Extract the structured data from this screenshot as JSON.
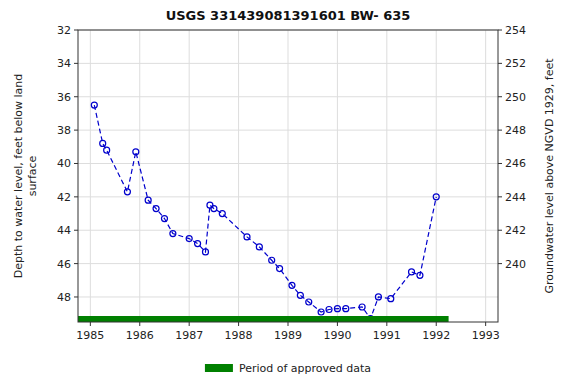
{
  "chart_data": {
    "type": "line",
    "title": "USGS 331439081391601 BW- 635",
    "y_label": "Depth to water level, feet below land\nsurface",
    "y2_label": "Groundwater level above NGVD 1929, feet",
    "x": [
      1985.08,
      1985.25,
      1985.33,
      1985.75,
      1985.92,
      1986.17,
      1986.33,
      1986.5,
      1986.67,
      1987.0,
      1987.17,
      1987.33,
      1987.42,
      1987.5,
      1987.67,
      1988.17,
      1988.42,
      1988.67,
      1988.83,
      1989.08,
      1989.25,
      1989.42,
      1989.67,
      1989.83,
      1990.0,
      1990.17,
      1990.5,
      1990.67,
      1990.83,
      1991.08,
      1991.5,
      1991.67,
      1992.0
    ],
    "series": [
      {
        "type": "line",
        "color": "#0000cc",
        "marker": "circle",
        "line_style": "dashed",
        "values": [
          36.5,
          38.8,
          39.2,
          41.7,
          39.3,
          42.2,
          42.7,
          43.3,
          44.2,
          44.5,
          44.8,
          45.3,
          42.5,
          42.7,
          43.0,
          44.4,
          45.0,
          45.8,
          46.3,
          47.3,
          47.9,
          48.3,
          48.9,
          48.75,
          48.7,
          48.7,
          48.6,
          49.3,
          48.0,
          48.1,
          46.5,
          46.7,
          42.0
        ]
      },
      {
        "name": "Period of approved data",
        "type": "span",
        "color": "#008000",
        "x": [
          1984.75,
          1992.25
        ]
      }
    ],
    "xlim": [
      1984.75,
      1993.25
    ],
    "xticks": [
      1985,
      1986,
      1987,
      1988,
      1989,
      1990,
      1991,
      1992,
      1993
    ],
    "ylim": [
      49.5,
      32
    ],
    "yticks": [
      32,
      34,
      36,
      38,
      40,
      42,
      44,
      46,
      48
    ],
    "y2lim": [
      236.5,
      254
    ],
    "y2ticks": [
      254,
      252,
      250,
      248,
      246,
      244,
      242,
      240
    ],
    "grid": true,
    "legend": "bottom"
  }
}
